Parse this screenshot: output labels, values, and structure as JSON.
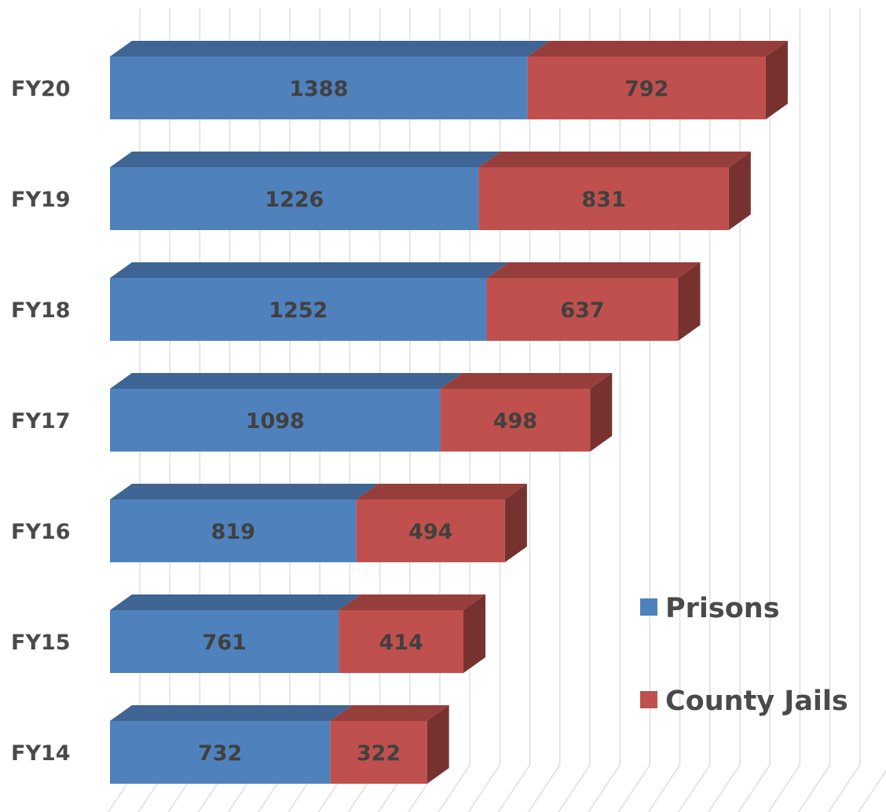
{
  "chart_data": {
    "type": "bar",
    "orientation": "horizontal",
    "stacked": true,
    "three_d": true,
    "title": "",
    "xlabel": "",
    "ylabel": "",
    "categories": [
      "FY20",
      "FY19",
      "FY18",
      "FY17",
      "FY16",
      "FY15",
      "FY14"
    ],
    "series": [
      {
        "name": "Prisons",
        "color": "#4f81bd",
        "values": [
          1388,
          1226,
          1252,
          1098,
          819,
          761,
          732
        ]
      },
      {
        "name": "County Jails",
        "color": "#c0504d",
        "values": [
          792,
          831,
          637,
          498,
          494,
          414,
          322
        ]
      }
    ],
    "xlim": [
      0,
      2600
    ],
    "grid": true,
    "legend_position": "right",
    "data_labels": true
  }
}
